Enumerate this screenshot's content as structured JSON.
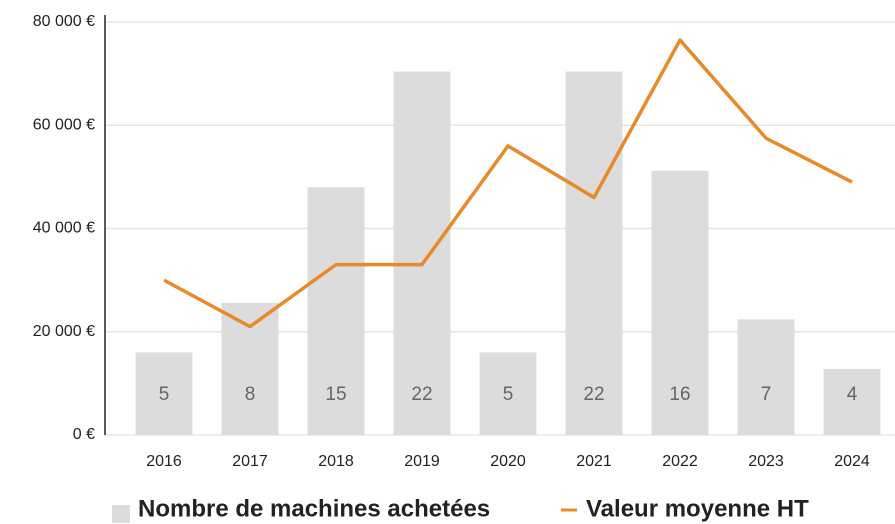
{
  "chart_data": {
    "type": "bar-line",
    "categories": [
      "2016",
      "2017",
      "2018",
      "2019",
      "2020",
      "2021",
      "2022",
      "2023",
      "2024"
    ],
    "series": [
      {
        "name": "Nombre de machines achetées",
        "type": "bar",
        "axis": "y2",
        "color": "#dcdcdc",
        "values": [
          5,
          8,
          15,
          22,
          5,
          22,
          16,
          7,
          4
        ]
      },
      {
        "name": "Valeur moyenne HT",
        "type": "line",
        "color": "#e8892a",
        "values": [
          30000,
          21000,
          33000,
          33000,
          56000,
          46000,
          76500,
          57500,
          49000
        ]
      }
    ],
    "ylim": [
      0,
      80000
    ],
    "yticks": [
      {
        "value": 0,
        "label": "0 €"
      },
      {
        "value": 20000,
        "label": "20 000 €"
      },
      {
        "value": 40000,
        "label": "40 000 €"
      },
      {
        "value": 60000,
        "label": "60 000 €"
      },
      {
        "value": 80000,
        "label": "80 000 €"
      }
    ],
    "y2lim": [
      0,
      25
    ],
    "grid": true
  }
}
